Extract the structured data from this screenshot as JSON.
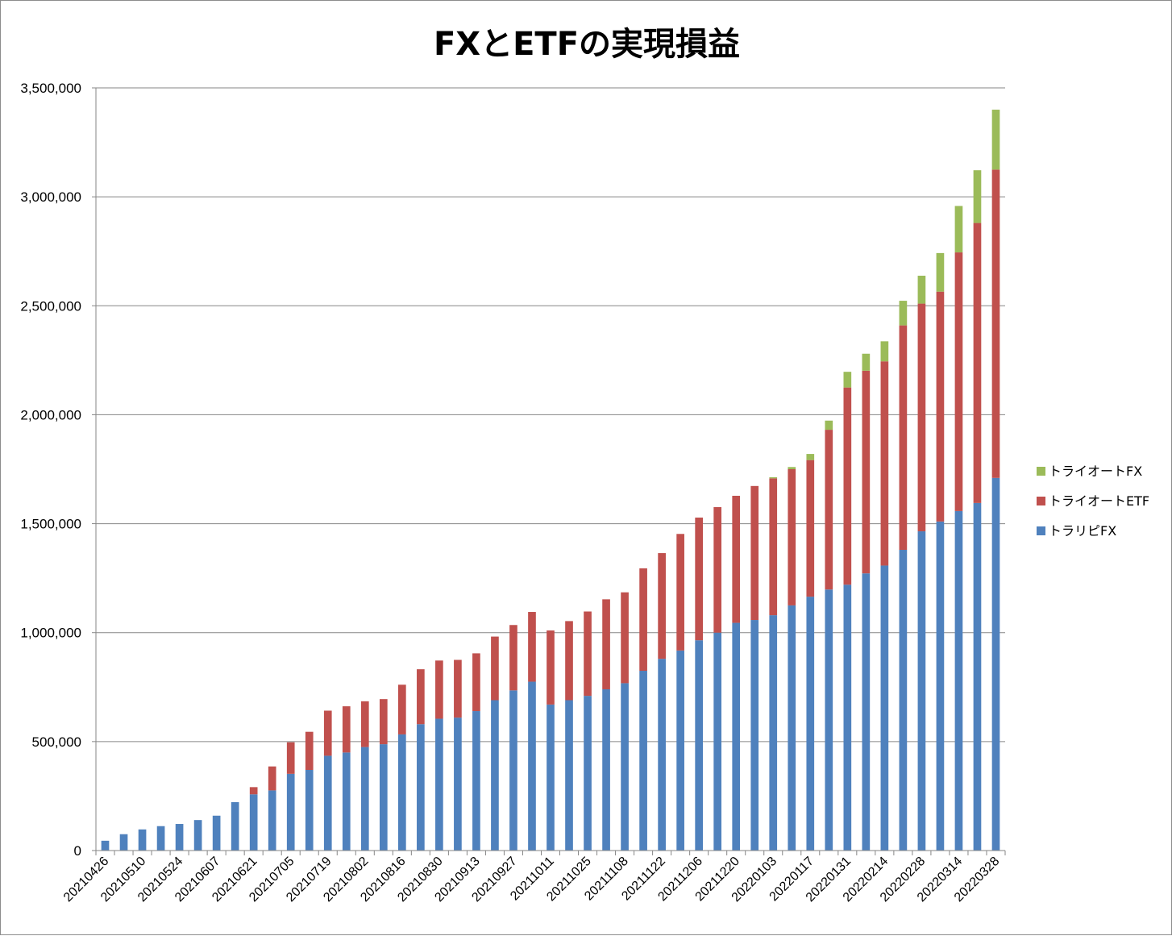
{
  "chart_data": {
    "type": "bar",
    "stacked": true,
    "title": "FXとETFの実現損益",
    "xlabel": "",
    "ylabel": "",
    "ylim": [
      0,
      3500000
    ],
    "yticks": [
      0,
      500000,
      1000000,
      1500000,
      2000000,
      2500000,
      3000000,
      3500000
    ],
    "ytick_labels": [
      "0",
      "500,000",
      "1,000,000",
      "1,500,000",
      "2,000,000",
      "2,500,000",
      "3,000,000",
      "3,500,000"
    ],
    "grid": true,
    "legend_position": "right",
    "categories": [
      "20210426",
      "20210503",
      "20210510",
      "20210517",
      "20210524",
      "20210531",
      "20210607",
      "20210614",
      "20210621",
      "20210628",
      "20210705",
      "20210712",
      "20210719",
      "20210726",
      "20210802",
      "20210809",
      "20210816",
      "20210823",
      "20210830",
      "20210906",
      "20210913",
      "20210920",
      "20210927",
      "20211004",
      "20211011",
      "20211018",
      "20211025",
      "20211101",
      "20211108",
      "20211115",
      "20211122",
      "20211129",
      "20211206",
      "20211213",
      "20211220",
      "20211227",
      "20220103",
      "20220110",
      "20220117",
      "20220124",
      "20220131",
      "20220207",
      "20220214",
      "20220221",
      "20220228",
      "20220307",
      "20220314",
      "20220321",
      "20220328"
    ],
    "x_tick_labels": [
      "20210426",
      "20210510",
      "20210524",
      "20210607",
      "20210621",
      "20210705",
      "20210719",
      "20210802",
      "20210816",
      "20210830",
      "20210913",
      "20210927",
      "20211011",
      "20211025",
      "20211108",
      "20211122",
      "20211206",
      "20211220",
      "20220103",
      "20220117",
      "20220131",
      "20220214",
      "20220228",
      "20220314",
      "20220328"
    ],
    "series": [
      {
        "name": "トラリピFX",
        "color": "#4f81bd",
        "values": [
          45000,
          75000,
          97000,
          112000,
          122000,
          140000,
          160000,
          222000,
          258000,
          276000,
          352000,
          370000,
          435000,
          450000,
          475000,
          488000,
          533000,
          580000,
          605000,
          610000,
          640000,
          690000,
          735000,
          775000,
          670000,
          690000,
          710000,
          740000,
          768000,
          825000,
          880000,
          918000,
          965000,
          1000000,
          1045000,
          1058000,
          1080000,
          1125000,
          1165000,
          1198000,
          1220000,
          1272000,
          1308000,
          1380000,
          1465000,
          1510000,
          1558000,
          1595000,
          1710000
        ]
      },
      {
        "name": "トライオートETF",
        "color": "#c0504d",
        "values": [
          0,
          0,
          0,
          0,
          0,
          0,
          0,
          0,
          33000,
          110000,
          145000,
          175000,
          207000,
          212000,
          210000,
          207000,
          228000,
          252000,
          267000,
          265000,
          265000,
          292000,
          300000,
          320000,
          340000,
          363000,
          387000,
          413000,
          417000,
          470000,
          485000,
          535000,
          563000,
          576000,
          583000,
          615000,
          628000,
          625000,
          627000,
          733000,
          905000,
          930000,
          937000,
          1030000,
          1045000,
          1055000,
          1187000,
          1285000,
          1415000
        ]
      },
      {
        "name": "トライオートFX",
        "color": "#9bbb59",
        "values": [
          0,
          0,
          0,
          0,
          0,
          0,
          0,
          0,
          0,
          0,
          0,
          0,
          0,
          0,
          0,
          0,
          0,
          0,
          0,
          0,
          0,
          0,
          0,
          0,
          0,
          0,
          0,
          0,
          0,
          0,
          0,
          0,
          0,
          0,
          0,
          0,
          5000,
          10000,
          28000,
          42000,
          72000,
          78000,
          92000,
          113000,
          128000,
          177000,
          213000,
          242000,
          275000
        ]
      }
    ]
  }
}
